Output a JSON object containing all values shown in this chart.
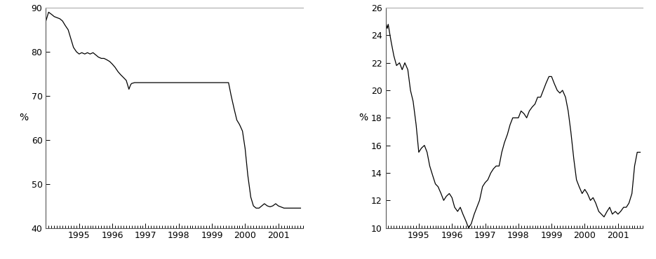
{
  "left_chart": {
    "ylabel": "%",
    "ylim": [
      40,
      90
    ],
    "yticks": [
      40,
      50,
      60,
      70,
      80,
      90
    ],
    "xlim_start": 1994.0,
    "xlim_end": 2001.75,
    "xtick_years": [
      1995,
      1996,
      1997,
      1998,
      1999,
      2000,
      2001
    ],
    "series": [
      [
        1994.0,
        87.0
      ],
      [
        1994.08,
        89.0
      ],
      [
        1994.17,
        88.5
      ],
      [
        1994.25,
        88.0
      ],
      [
        1994.42,
        87.5
      ],
      [
        1994.5,
        87.0
      ],
      [
        1994.58,
        86.0
      ],
      [
        1994.67,
        85.0
      ],
      [
        1994.75,
        83.0
      ],
      [
        1994.83,
        81.0
      ],
      [
        1994.92,
        80.0
      ],
      [
        1995.0,
        79.5
      ],
      [
        1995.08,
        79.8
      ],
      [
        1995.17,
        79.5
      ],
      [
        1995.25,
        79.8
      ],
      [
        1995.33,
        79.5
      ],
      [
        1995.42,
        79.8
      ],
      [
        1995.5,
        79.3
      ],
      [
        1995.58,
        78.8
      ],
      [
        1995.67,
        78.5
      ],
      [
        1995.75,
        78.5
      ],
      [
        1995.83,
        78.2
      ],
      [
        1995.92,
        77.8
      ],
      [
        1996.0,
        77.2
      ],
      [
        1996.08,
        76.5
      ],
      [
        1996.17,
        75.5
      ],
      [
        1996.25,
        74.8
      ],
      [
        1996.33,
        74.2
      ],
      [
        1996.42,
        73.5
      ],
      [
        1996.5,
        71.5
      ],
      [
        1996.55,
        72.5
      ],
      [
        1996.58,
        72.8
      ],
      [
        1996.67,
        73.0
      ],
      [
        1996.75,
        73.0
      ],
      [
        1996.83,
        73.0
      ],
      [
        1996.92,
        73.0
      ],
      [
        1997.0,
        73.0
      ],
      [
        1997.17,
        73.0
      ],
      [
        1997.33,
        73.0
      ],
      [
        1997.5,
        73.0
      ],
      [
        1997.67,
        73.0
      ],
      [
        1997.83,
        73.0
      ],
      [
        1998.0,
        73.0
      ],
      [
        1998.17,
        73.0
      ],
      [
        1998.33,
        73.0
      ],
      [
        1998.5,
        73.0
      ],
      [
        1998.67,
        73.0
      ],
      [
        1998.83,
        73.0
      ],
      [
        1999.0,
        73.0
      ],
      [
        1999.17,
        73.0
      ],
      [
        1999.33,
        73.0
      ],
      [
        1999.5,
        73.0
      ],
      [
        1999.58,
        70.0
      ],
      [
        1999.67,
        67.0
      ],
      [
        1999.75,
        64.5
      ],
      [
        1999.83,
        63.5
      ],
      [
        1999.92,
        62.0
      ],
      [
        2000.0,
        58.0
      ],
      [
        2000.08,
        52.0
      ],
      [
        2000.17,
        47.0
      ],
      [
        2000.25,
        45.0
      ],
      [
        2000.33,
        44.5
      ],
      [
        2000.42,
        44.5
      ],
      [
        2000.5,
        45.0
      ],
      [
        2000.58,
        45.5
      ],
      [
        2000.67,
        45.0
      ],
      [
        2000.75,
        44.8
      ],
      [
        2000.83,
        45.0
      ],
      [
        2000.92,
        45.5
      ],
      [
        2001.0,
        45.0
      ],
      [
        2001.17,
        44.5
      ],
      [
        2001.33,
        44.5
      ],
      [
        2001.5,
        44.5
      ],
      [
        2001.67,
        44.5
      ]
    ]
  },
  "right_chart": {
    "ylabel": "%",
    "ylim": [
      10,
      26
    ],
    "yticks": [
      10,
      12,
      14,
      16,
      18,
      20,
      22,
      24,
      26
    ],
    "xlim_start": 1994.0,
    "xlim_end": 2001.75,
    "xtick_years": [
      1995,
      1996,
      1997,
      1998,
      1999,
      2000,
      2001
    ],
    "series": [
      [
        1994.0,
        25.0
      ],
      [
        1994.05,
        24.5
      ],
      [
        1994.08,
        24.8
      ],
      [
        1994.12,
        24.2
      ],
      [
        1994.17,
        23.5
      ],
      [
        1994.25,
        22.5
      ],
      [
        1994.33,
        21.8
      ],
      [
        1994.42,
        22.0
      ],
      [
        1994.5,
        21.5
      ],
      [
        1994.58,
        22.0
      ],
      [
        1994.67,
        21.5
      ],
      [
        1994.75,
        20.0
      ],
      [
        1994.83,
        19.2
      ],
      [
        1994.92,
        17.5
      ],
      [
        1995.0,
        15.5
      ],
      [
        1995.08,
        15.8
      ],
      [
        1995.17,
        16.0
      ],
      [
        1995.25,
        15.5
      ],
      [
        1995.33,
        14.5
      ],
      [
        1995.42,
        13.8
      ],
      [
        1995.5,
        13.2
      ],
      [
        1995.58,
        13.0
      ],
      [
        1995.67,
        12.5
      ],
      [
        1995.75,
        12.0
      ],
      [
        1995.83,
        12.3
      ],
      [
        1995.92,
        12.5
      ],
      [
        1996.0,
        12.2
      ],
      [
        1996.08,
        11.5
      ],
      [
        1996.17,
        11.2
      ],
      [
        1996.25,
        11.5
      ],
      [
        1996.33,
        11.0
      ],
      [
        1996.42,
        10.5
      ],
      [
        1996.5,
        10.0
      ],
      [
        1996.58,
        10.3
      ],
      [
        1996.67,
        11.0
      ],
      [
        1996.75,
        11.5
      ],
      [
        1996.83,
        12.0
      ],
      [
        1996.92,
        13.0
      ],
      [
        1997.0,
        13.3
      ],
      [
        1997.08,
        13.5
      ],
      [
        1997.17,
        14.0
      ],
      [
        1997.25,
        14.3
      ],
      [
        1997.33,
        14.5
      ],
      [
        1997.42,
        14.5
      ],
      [
        1997.5,
        15.5
      ],
      [
        1997.58,
        16.2
      ],
      [
        1997.67,
        16.8
      ],
      [
        1997.75,
        17.5
      ],
      [
        1997.83,
        18.0
      ],
      [
        1997.92,
        18.0
      ],
      [
        1998.0,
        18.0
      ],
      [
        1998.08,
        18.5
      ],
      [
        1998.17,
        18.3
      ],
      [
        1998.25,
        18.0
      ],
      [
        1998.33,
        18.5
      ],
      [
        1998.42,
        18.8
      ],
      [
        1998.5,
        19.0
      ],
      [
        1998.58,
        19.5
      ],
      [
        1998.67,
        19.5
      ],
      [
        1998.75,
        20.0
      ],
      [
        1998.83,
        20.5
      ],
      [
        1998.92,
        21.0
      ],
      [
        1999.0,
        21.0
      ],
      [
        1999.08,
        20.5
      ],
      [
        1999.17,
        20.0
      ],
      [
        1999.25,
        19.8
      ],
      [
        1999.33,
        20.0
      ],
      [
        1999.42,
        19.5
      ],
      [
        1999.5,
        18.5
      ],
      [
        1999.58,
        17.0
      ],
      [
        1999.67,
        15.0
      ],
      [
        1999.75,
        13.5
      ],
      [
        1999.83,
        13.0
      ],
      [
        1999.92,
        12.5
      ],
      [
        2000.0,
        12.8
      ],
      [
        2000.08,
        12.5
      ],
      [
        2000.17,
        12.0
      ],
      [
        2000.25,
        12.2
      ],
      [
        2000.33,
        11.8
      ],
      [
        2000.42,
        11.2
      ],
      [
        2000.5,
        11.0
      ],
      [
        2000.58,
        10.8
      ],
      [
        2000.67,
        11.2
      ],
      [
        2000.75,
        11.5
      ],
      [
        2000.83,
        11.0
      ],
      [
        2000.92,
        11.2
      ],
      [
        2001.0,
        11.0
      ],
      [
        2001.08,
        11.2
      ],
      [
        2001.17,
        11.5
      ],
      [
        2001.25,
        11.5
      ],
      [
        2001.33,
        11.8
      ],
      [
        2001.42,
        12.5
      ],
      [
        2001.5,
        14.5
      ],
      [
        2001.58,
        15.5
      ],
      [
        2001.67,
        15.5
      ]
    ]
  },
  "line_color": "#000000",
  "line_width": 0.9,
  "background_color": "#ffffff",
  "tick_color": "#000000",
  "spine_color": "#555555",
  "top_spine_color": "#aaaaaa"
}
